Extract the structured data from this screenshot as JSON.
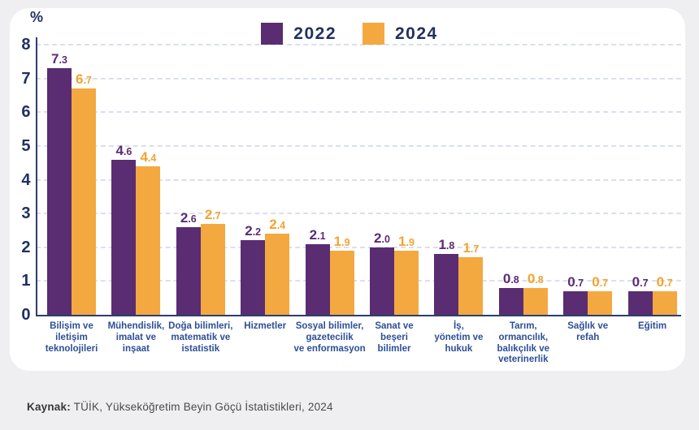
{
  "page": {
    "background": "#efeff1",
    "panel_background": "#ffffff"
  },
  "chart_data": {
    "type": "bar",
    "title": "",
    "xlabel": "",
    "ylabel": "%",
    "ylim": [
      0,
      8
    ],
    "yticks": [
      0,
      1,
      2,
      3,
      4,
      5,
      6,
      7,
      8
    ],
    "grid": "horizontal-dashed",
    "legend_position": "top-center",
    "categories": [
      [
        "Bilişim ve",
        "iletişim",
        "teknolojileri"
      ],
      [
        "Mühendislik,",
        "imalat ve",
        "inşaat"
      ],
      [
        "Doğa bilimleri,",
        "matematik ve",
        "istatistik"
      ],
      [
        "Hizmetler"
      ],
      [
        "Sosyal bilimler,",
        "gazetecilik",
        "ve enformasyon"
      ],
      [
        "Sanat ve",
        "beşeri",
        "bilimler"
      ],
      [
        "İş,",
        "yönetim ve",
        "hukuk"
      ],
      [
        "Tarım,",
        "ormancılık,",
        "balıkçılık ve",
        "veterinerlik"
      ],
      [
        "Sağlık ve",
        "refah"
      ],
      [
        "Eğitim"
      ]
    ],
    "series": [
      {
        "name": "2022",
        "color": "#5a2c72",
        "label_color": "#5b2d76",
        "values": [
          7.3,
          4.6,
          2.6,
          2.2,
          2.1,
          2.0,
          1.8,
          0.8,
          0.7,
          0.7
        ]
      },
      {
        "name": "2024",
        "color": "#f3a93f",
        "label_color": "#f2a430",
        "values": [
          6.7,
          4.4,
          2.7,
          2.4,
          1.9,
          1.9,
          1.7,
          0.8,
          0.7,
          0.7
        ]
      }
    ],
    "axis_text_color": "#203061",
    "axis_line_color": "#2c3d72",
    "grid_color": "#d9dfef",
    "category_color": "#2d4f96"
  },
  "source": {
    "prefix": "Kaynak:",
    "text": " TÜİK, Yükseköğretim Beyin Göçü İstatistikleri, 2024"
  }
}
